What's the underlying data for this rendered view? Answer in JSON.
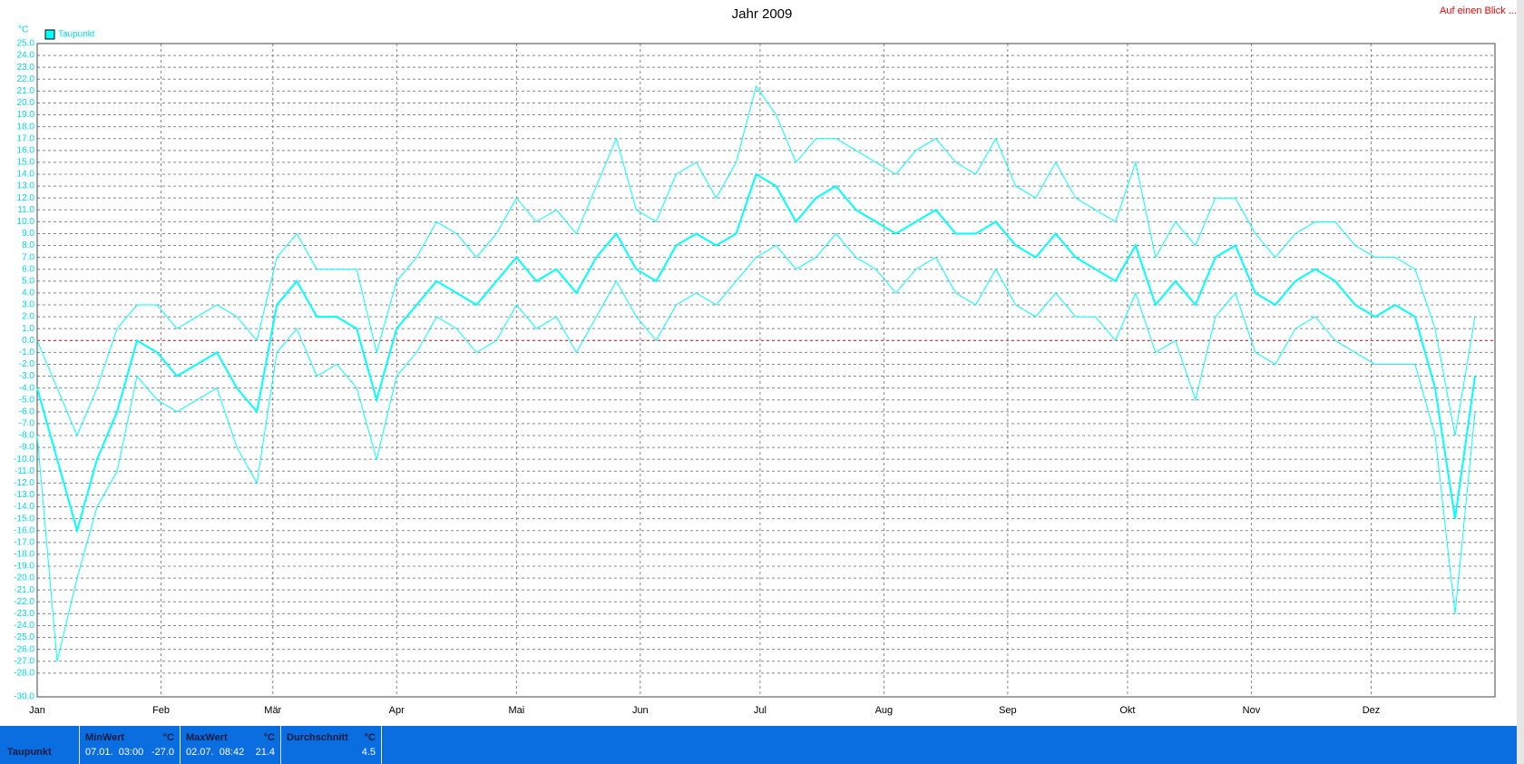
{
  "chart_data": {
    "type": "line",
    "title": "Jahr 2009",
    "ylabel": "°C",
    "x": [
      0,
      5,
      10,
      15,
      20,
      25,
      30,
      35,
      40,
      45,
      50,
      55,
      60,
      65,
      70,
      75,
      80,
      85,
      90,
      95,
      100,
      105,
      110,
      115,
      120,
      125,
      130,
      135,
      140,
      145,
      150,
      155,
      160,
      165,
      170,
      175,
      180,
      185,
      190,
      195,
      200,
      205,
      210,
      215,
      220,
      225,
      230,
      235,
      240,
      245,
      250,
      255,
      260,
      265,
      270,
      275,
      280,
      285,
      290,
      295,
      300,
      305,
      310,
      315,
      320,
      325,
      330,
      335,
      340,
      345,
      350,
      355,
      360
    ],
    "series": [
      {
        "color": "#00ffff",
        "values": [
          -8,
          -27,
          -20,
          -14,
          -11,
          -3,
          -5,
          -6,
          -5,
          -4,
          -9,
          -12,
          -1,
          1,
          -3,
          -2,
          -4,
          -10,
          -3,
          -1,
          2,
          1,
          -1,
          0,
          3,
          1,
          2,
          -1,
          2,
          5,
          2,
          0,
          3,
          4,
          3,
          5,
          7,
          8,
          6,
          7,
          9,
          7,
          6,
          4,
          6,
          7,
          4,
          3,
          6,
          3,
          2,
          4,
          2,
          2,
          0,
          4,
          -1,
          0,
          -5,
          2,
          4,
          -1,
          -2,
          1,
          2,
          0,
          -1,
          -2,
          -2,
          -2,
          -8,
          -23,
          -6
        ]
      },
      {
        "color": "#00ffff",
        "values": [
          0,
          -4,
          -8,
          -4,
          1,
          3,
          3,
          1,
          2,
          3,
          2,
          0,
          7,
          9,
          6,
          6,
          6,
          -1,
          5,
          7,
          10,
          9,
          7,
          9,
          12,
          10,
          11,
          9,
          13,
          17,
          11,
          10,
          14,
          15,
          12,
          15,
          21.4,
          19,
          15,
          17,
          17,
          16,
          15,
          14,
          16,
          17,
          15,
          14,
          17,
          13,
          12,
          15,
          12,
          11,
          10,
          15,
          7,
          10,
          8,
          12,
          12,
          9,
          7,
          9,
          10,
          10,
          8,
          7,
          7,
          6,
          1,
          -8,
          2
        ]
      },
      {
        "name": "Taupunkt",
        "color": "#00ffff",
        "values": [
          -4,
          -10,
          -16,
          -10,
          -6,
          0,
          -1,
          -3,
          -2,
          -1,
          -4,
          -6,
          3,
          5,
          2,
          2,
          1,
          -5,
          1,
          3,
          5,
          4,
          3,
          5,
          7,
          5,
          6,
          4,
          7,
          9,
          6,
          5,
          8,
          9,
          8,
          9,
          14,
          13,
          10,
          12,
          13,
          11,
          10,
          9,
          10,
          11,
          9,
          9,
          10,
          8,
          7,
          9,
          7,
          6,
          5,
          8,
          3,
          5,
          3,
          7,
          8,
          4,
          3,
          5,
          6,
          5,
          3,
          2,
          3,
          2,
          -4,
          -15,
          -3
        ]
      }
    ],
    "xlim": [
      0,
      365
    ],
    "xticks": [
      {
        "value": 0,
        "label": "Jan"
      },
      {
        "value": 31,
        "label": "Feb"
      },
      {
        "value": 59,
        "label": "Mär"
      },
      {
        "value": 90,
        "label": "Apr"
      },
      {
        "value": 120,
        "label": "Mai"
      },
      {
        "value": 151,
        "label": "Jun"
      },
      {
        "value": 181,
        "label": "Jul"
      },
      {
        "value": 212,
        "label": "Aug"
      },
      {
        "value": 243,
        "label": "Sep"
      },
      {
        "value": 273,
        "label": "Okt"
      },
      {
        "value": 304,
        "label": "Nov"
      },
      {
        "value": 334,
        "label": "Dez"
      }
    ],
    "ylim": [
      -30,
      25
    ],
    "yticks": [
      {
        "value": 25,
        "label": "25.0"
      },
      {
        "value": 24,
        "label": "24.0"
      },
      {
        "value": 23,
        "label": "23.0"
      },
      {
        "value": 22,
        "label": "22.0"
      },
      {
        "value": 21,
        "label": "21.0"
      },
      {
        "value": 20,
        "label": "20.0"
      },
      {
        "value": 19,
        "label": "19.0"
      },
      {
        "value": 18,
        "label": "18.0"
      },
      {
        "value": 17,
        "label": "17.0"
      },
      {
        "value": 16,
        "label": "16.0"
      },
      {
        "value": 15,
        "label": "15.0"
      },
      {
        "value": 14,
        "label": "14.0"
      },
      {
        "value": 13,
        "label": "13.0"
      },
      {
        "value": 12,
        "label": "12.0"
      },
      {
        "value": 11,
        "label": "11.0"
      },
      {
        "value": 10,
        "label": "10.0"
      },
      {
        "value": 9,
        "label": "9.0"
      },
      {
        "value": 8,
        "label": "8.0"
      },
      {
        "value": 7,
        "label": "7.0"
      },
      {
        "value": 6,
        "label": "6.0"
      },
      {
        "value": 5,
        "label": "5.0"
      },
      {
        "value": 4,
        "label": "4.0"
      },
      {
        "value": 3,
        "label": "3.0"
      },
      {
        "value": 2,
        "label": "2.0"
      },
      {
        "value": 1,
        "label": "1.0"
      },
      {
        "value": 0,
        "label": "0.0"
      },
      {
        "value": -1,
        "label": "-1.0"
      },
      {
        "value": -2,
        "label": "-2.0"
      },
      {
        "value": -3,
        "label": "-3.0"
      },
      {
        "value": -4,
        "label": "-4.0"
      },
      {
        "value": -5,
        "label": "-5.0"
      },
      {
        "value": -6,
        "label": "-6.0"
      },
      {
        "value": -7,
        "label": "-7.0"
      },
      {
        "value": -8,
        "label": "-8.0"
      },
      {
        "value": -9,
        "label": "-9.0"
      },
      {
        "value": -10,
        "label": "-10.0"
      },
      {
        "value": -11,
        "label": "-11.0"
      },
      {
        "value": -12,
        "label": "-12.0"
      },
      {
        "value": -13,
        "label": "-13.0"
      },
      {
        "value": -14,
        "label": "-14.0"
      },
      {
        "value": -15,
        "label": "-15.0"
      },
      {
        "value": -16,
        "label": "-16.0"
      },
      {
        "value": -17,
        "label": "-17.0"
      },
      {
        "value": -18,
        "label": "-18.0"
      },
      {
        "value": -19,
        "label": "-19.0"
      },
      {
        "value": -20,
        "label": "-20.0"
      },
      {
        "value": -21,
        "label": "-21.0"
      },
      {
        "value": -22,
        "label": "-22.0"
      },
      {
        "value": -23,
        "label": "-23.0"
      },
      {
        "value": -24,
        "label": "-24.0"
      },
      {
        "value": -25,
        "label": "-25.0"
      },
      {
        "value": -26,
        "label": "-26.0"
      },
      {
        "value": -27,
        "label": "-27.0"
      },
      {
        "value": -28,
        "label": "-28.0"
      },
      {
        "value": -30,
        "label": "-30.0"
      }
    ],
    "grid": true,
    "legend": "top-left"
  },
  "link": "Auf einen Blick ...",
  "stats": {
    "row_label": "Taupunkt",
    "columns": [
      {
        "header": "MinWert",
        "unit": "°C",
        "time": "07.01.  03:00",
        "value": "-27.0"
      },
      {
        "header": "MaxWert",
        "unit": "°C",
        "time": "02.07.  08:42",
        "value": "21.4"
      },
      {
        "header": "Durchschnitt",
        "unit": "°C",
        "time": null,
        "value": "4.5"
      }
    ]
  }
}
